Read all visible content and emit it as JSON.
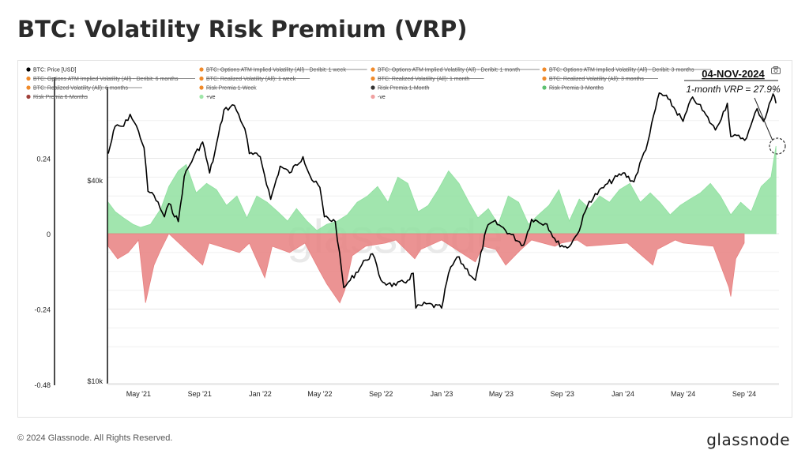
{
  "title": "BTC: Volatility Risk Premium (VRP)",
  "footer": {
    "copyright": "© 2024 Glassnode. All Rights Reserved.",
    "logo": "glassnode"
  },
  "watermark": "glassnode",
  "icons": {
    "camera": "camera-icon"
  },
  "annotation": {
    "date": "04-NOV-2024",
    "text": "1-month VRP = 27.9%"
  },
  "colors": {
    "price": "#000000",
    "positive": "#90e0a0",
    "negative": "#e88080",
    "legend_orange": "#f08a2a",
    "legend_dark": "#333333",
    "legend_brown": "#a0403a",
    "legend_lightgreen": "#9ee6a8",
    "legend_pink": "#f0a0a0",
    "legend_green": "#5cc070"
  },
  "legend": [
    {
      "label": "BTC: Price [USD]",
      "color": "#000000",
      "disabled": false
    },
    {
      "label": "BTC: Options ATM Implied Volatility (All) - Deribit: 1 week",
      "color": "#f08a2a",
      "disabled": true
    },
    {
      "label": "BTC: Options ATM Implied Volatility (All) - Deribit: 1 month",
      "color": "#f08a2a",
      "disabled": true
    },
    {
      "label": "BTC: Options ATM Implied Volatility (All) - Deribit: 3 months",
      "color": "#f08a2a",
      "disabled": true
    },
    {
      "label": "BTC: Options ATM Implied Volatility (All) - Deribit: 6 months",
      "color": "#f08a2a",
      "disabled": true
    },
    {
      "label": "BTC: Realized Volatility (All): 1 week",
      "color": "#f08a2a",
      "disabled": true
    },
    {
      "label": "BTC: Realized Volatility (All): 1 month",
      "color": "#f08a2a",
      "disabled": true
    },
    {
      "label": "BTC: Realized Volatility (All): 3 months",
      "color": "#f08a2a",
      "disabled": true
    },
    {
      "label": "BTC: Realized Volatility (All): 6 months",
      "color": "#f08a2a",
      "disabled": true
    },
    {
      "label": "Risk Premia 1-Week",
      "color": "#f08a2a",
      "disabled": true
    },
    {
      "label": "Risk Premia 1-Month",
      "color": "#333333",
      "disabled": true
    },
    {
      "label": "Risk Premia 3-Months",
      "color": "#5cc070",
      "disabled": true
    },
    {
      "label": "Risk Premia 6-Months",
      "color": "#a0403a",
      "disabled": true
    },
    {
      "label": "+ve",
      "color": "#9ee6a8",
      "disabled": false
    },
    {
      "label": "-ve",
      "color": "#f0a0a0",
      "disabled": false
    }
  ],
  "chart_data": {
    "type": "line",
    "title": "BTC: Volatility Risk Premium (VRP)",
    "left_axis": {
      "ticks": [
        "0.24",
        "0",
        "-0.24",
        "-0.48"
      ],
      "values": [
        0.24,
        0,
        -0.24,
        -0.48
      ],
      "range": [
        -0.48,
        0.36
      ]
    },
    "price_axis": {
      "ticks": [
        "$40k",
        "$10k"
      ],
      "values": [
        40000,
        10000
      ],
      "scale": "log"
    },
    "x_ticks": [
      "May '21",
      "Sep '21",
      "Jan '22",
      "May '22",
      "Sep '22",
      "Jan '23",
      "May '23",
      "Sep '23",
      "Jan '24",
      "May '24",
      "Sep '24"
    ],
    "x_range": [
      "2021-03-01",
      "2024-11-10"
    ],
    "legend_placement": "top",
    "grid": true,
    "series": [
      {
        "name": "BTC: Price [USD]",
        "x": [
          "2021-03-01",
          "2021-03-15",
          "2021-04-01",
          "2021-04-14",
          "2021-05-01",
          "2021-05-12",
          "2021-05-20",
          "2021-06-01",
          "2021-06-22",
          "2021-07-01",
          "2021-07-20",
          "2021-08-01",
          "2021-08-20",
          "2021-09-07",
          "2021-09-21",
          "2021-10-01",
          "2021-10-20",
          "2021-11-10",
          "2021-12-01",
          "2021-12-10",
          "2022-01-01",
          "2022-01-22",
          "2022-02-10",
          "2022-03-01",
          "2022-03-28",
          "2022-04-15",
          "2022-05-01",
          "2022-05-10",
          "2022-06-01",
          "2022-06-18",
          "2022-07-01",
          "2022-08-01",
          "2022-08-15",
          "2022-09-01",
          "2022-09-15",
          "2022-10-01",
          "2022-10-25",
          "2022-11-05",
          "2022-11-10",
          "2022-12-01",
          "2023-01-01",
          "2023-01-15",
          "2023-02-01",
          "2023-03-10",
          "2023-04-01",
          "2023-04-15",
          "2023-05-01",
          "2023-06-15",
          "2023-07-01",
          "2023-08-01",
          "2023-08-20",
          "2023-09-11",
          "2023-10-01",
          "2023-10-25",
          "2023-12-01",
          "2024-01-01",
          "2024-01-23",
          "2024-02-20",
          "2024-03-14",
          "2024-04-01",
          "2024-05-01",
          "2024-05-20",
          "2024-06-01",
          "2024-07-05",
          "2024-07-29",
          "2024-08-05",
          "2024-09-06",
          "2024-09-27",
          "2024-10-10",
          "2024-10-29",
          "2024-11-04"
        ],
        "y": [
          48000,
          58000,
          58000,
          63000,
          56000,
          50000,
          37000,
          36000,
          31000,
          34000,
          30000,
          41000,
          47000,
          52000,
          42000,
          48000,
          65000,
          67000,
          57000,
          48000,
          47000,
          35000,
          44000,
          42000,
          47000,
          40000,
          38000,
          31000,
          30000,
          19000,
          20000,
          23000,
          24000,
          20000,
          19500,
          19300,
          20000,
          21000,
          16500,
          17000,
          16500,
          21000,
          23500,
          20000,
          28500,
          30000,
          29000,
          25500,
          30500,
          29500,
          26000,
          25000,
          27500,
          34500,
          39000,
          42000,
          39500,
          52000,
          73000,
          70000,
          60000,
          71000,
          67500,
          56500,
          68000,
          54000,
          53500,
          65500,
          60000,
          72500,
          68000
        ]
      },
      {
        "name": "+ve",
        "x": [
          "2021-03-01",
          "2021-03-15",
          "2021-04-01",
          "2021-04-20",
          "2021-05-05",
          "2021-05-25",
          "2021-06-15",
          "2021-07-01",
          "2021-07-20",
          "2021-08-05",
          "2021-08-25",
          "2021-09-15",
          "2021-10-05",
          "2021-10-25",
          "2021-11-15",
          "2021-12-05",
          "2021-12-25",
          "2022-01-15",
          "2022-02-05",
          "2022-02-25",
          "2022-03-15",
          "2022-04-05",
          "2022-04-25",
          "2022-05-15",
          "2022-06-05",
          "2022-06-25",
          "2022-07-15",
          "2022-08-05",
          "2022-08-25",
          "2022-09-15",
          "2022-10-05",
          "2022-10-25",
          "2022-11-15",
          "2022-12-05",
          "2022-12-25",
          "2023-01-15",
          "2023-02-05",
          "2023-02-25",
          "2023-03-15",
          "2023-04-05",
          "2023-04-25",
          "2023-05-15",
          "2023-06-05",
          "2023-06-25",
          "2023-07-15",
          "2023-08-05",
          "2023-08-25",
          "2023-09-15",
          "2023-10-05",
          "2023-10-25",
          "2023-11-15",
          "2023-12-05",
          "2023-12-25",
          "2024-01-15",
          "2024-02-05",
          "2024-02-25",
          "2024-03-15",
          "2024-04-05",
          "2024-04-25",
          "2024-05-15",
          "2024-06-05",
          "2024-06-25",
          "2024-07-15",
          "2024-08-05",
          "2024-08-25",
          "2024-09-15",
          "2024-10-05",
          "2024-10-25",
          "2024-11-04"
        ],
        "y": [
          0.1,
          0.07,
          0.05,
          0.03,
          0.02,
          0.03,
          0.08,
          0.15,
          0.2,
          0.22,
          0.13,
          0.16,
          0.14,
          0.09,
          0.12,
          0.05,
          0.12,
          0.1,
          0.07,
          0.04,
          0.08,
          0.04,
          0.01,
          0.03,
          0.04,
          0.06,
          0.1,
          0.12,
          0.15,
          0.1,
          0.18,
          0.16,
          0.07,
          0.09,
          0.14,
          0.2,
          0.16,
          0.1,
          0.05,
          0.08,
          0.03,
          0.12,
          0.1,
          0.03,
          0.06,
          0.09,
          0.14,
          0.04,
          0.11,
          0.08,
          0.12,
          0.1,
          0.14,
          0.16,
          0.1,
          0.13,
          0.1,
          0.06,
          0.09,
          0.11,
          0.13,
          0.16,
          0.12,
          0.06,
          0.1,
          0.07,
          0.15,
          0.18,
          0.279
        ]
      },
      {
        "name": "-ve",
        "x": [
          "2021-03-01",
          "2021-03-20",
          "2021-04-10",
          "2021-05-01",
          "2021-05-15",
          "2021-06-01",
          "2021-06-15",
          "2021-07-01",
          "2021-09-07",
          "2021-09-20",
          "2021-11-20",
          "2021-12-10",
          "2022-01-10",
          "2022-01-25",
          "2022-03-01",
          "2022-04-01",
          "2022-05-01",
          "2022-05-15",
          "2022-06-10",
          "2022-06-20",
          "2022-07-05",
          "2022-08-01",
          "2022-09-10",
          "2022-10-01",
          "2022-11-08",
          "2022-11-20",
          "2023-01-01",
          "2023-03-10",
          "2023-03-25",
          "2023-04-20",
          "2023-05-10",
          "2023-06-10",
          "2023-07-01",
          "2023-08-17",
          "2023-08-30",
          "2023-10-01",
          "2023-10-20",
          "2024-01-10",
          "2024-03-01",
          "2024-03-10",
          "2024-04-15",
          "2024-05-01",
          "2024-07-01",
          "2024-08-01",
          "2024-08-05",
          "2024-08-15",
          "2024-09-01"
        ],
        "y": [
          -0.04,
          -0.08,
          -0.06,
          -0.02,
          -0.22,
          -0.1,
          -0.05,
          0,
          -0.1,
          -0.03,
          -0.06,
          -0.03,
          -0.14,
          -0.04,
          -0.06,
          -0.03,
          -0.12,
          -0.16,
          -0.22,
          -0.18,
          -0.07,
          -0.04,
          -0.03,
          -0.02,
          -0.08,
          -0.05,
          -0.02,
          -0.09,
          -0.04,
          -0.05,
          -0.1,
          -0.05,
          -0.02,
          -0.04,
          -0.03,
          -0.02,
          -0.04,
          -0.03,
          -0.1,
          -0.05,
          -0.02,
          -0.03,
          -0.04,
          -0.17,
          -0.2,
          -0.08,
          -0.03
        ]
      }
    ]
  }
}
